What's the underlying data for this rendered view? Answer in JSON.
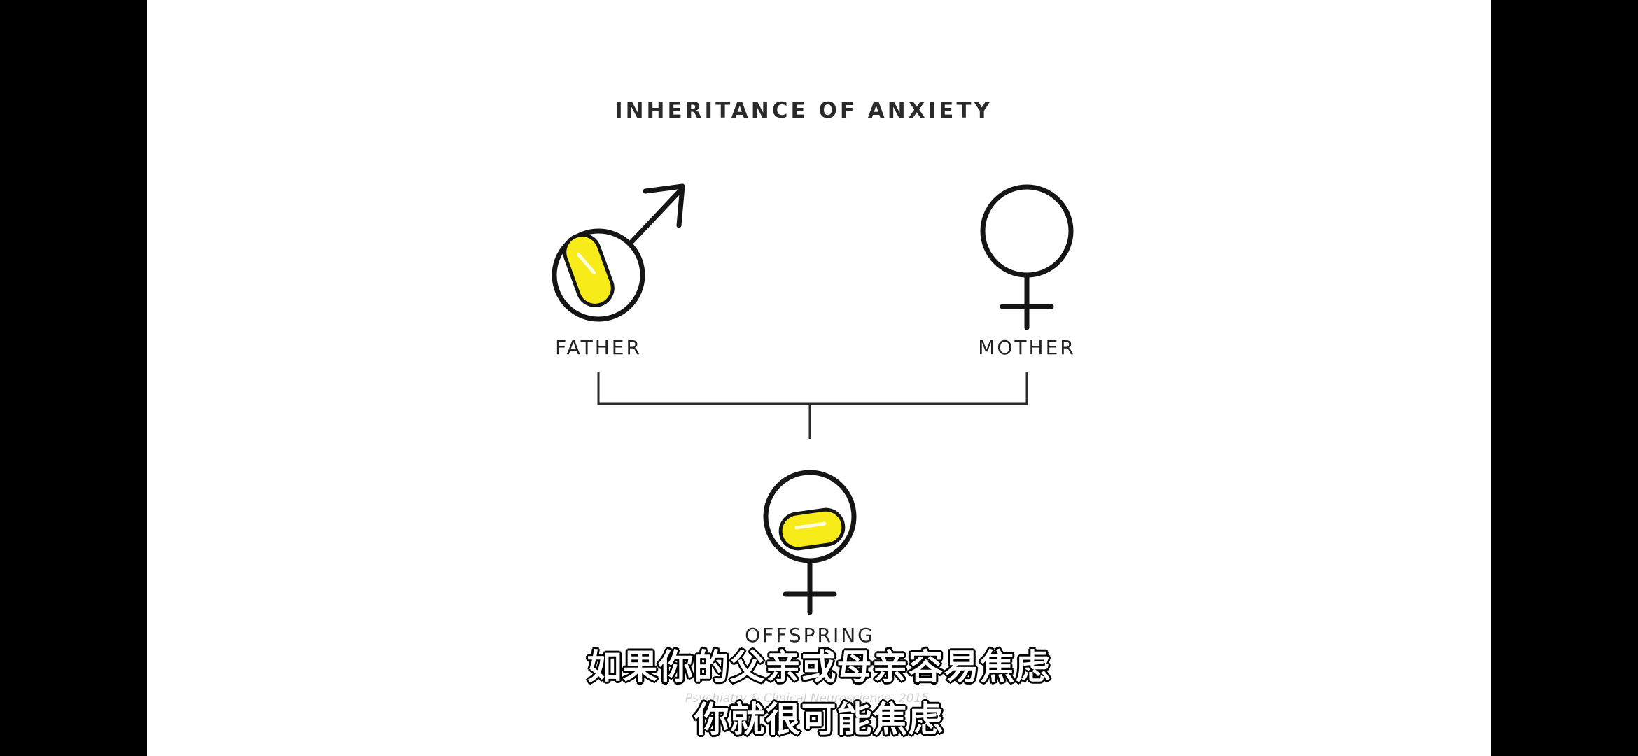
{
  "diagram": {
    "title": "INHERITANCE OF ANXIETY",
    "nodes": {
      "father": {
        "label": "FATHER",
        "symbol": "male-symbol",
        "has_anxiety_capsule": true
      },
      "mother": {
        "label": "MOTHER",
        "symbol": "female-symbol",
        "has_anxiety_capsule": false
      },
      "offspring": {
        "label": "OFFSPRING",
        "symbol": "female-symbol",
        "has_anxiety_capsule": true
      }
    },
    "citation": "Psychiatry & Clinical Neuroscience, 2015"
  },
  "subtitles": {
    "line1": "如果你的父亲或母亲容易焦虑",
    "line2": "你就很可能焦虑"
  },
  "colors": {
    "background": "#ffffff",
    "letterbox": "#000000",
    "ink": "#151515",
    "capsule": "#f7ec1a",
    "capsule_highlight": "#ffffff"
  }
}
